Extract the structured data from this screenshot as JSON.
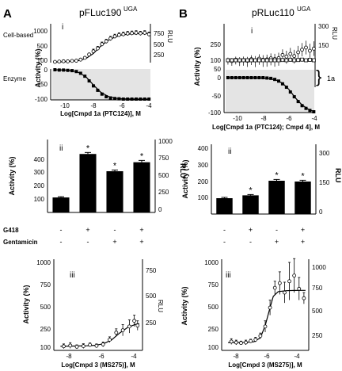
{
  "figure": {
    "panel_a_letter": "A",
    "panel_b_letter": "B",
    "panel_a_title": "pFLuc190",
    "panel_a_superscript": "UGA",
    "panel_b_title": "pRLuc110",
    "panel_b_superscript": "UGA",
    "roman_i": "i",
    "roman_ii": "ii",
    "roman_iii": "iii",
    "cell_based_label": "Cell-based",
    "enzyme_label": "Enzyme",
    "label_1a": "1a",
    "x_label_a_i": "Log[Cmpd 1a (PTC124)], M",
    "x_label_b_i": "Log[Cmpd 1a (PTC124);  Cmpd 4], M",
    "x_label_iii": "Log[Cmpd 3 (MS275)], M",
    "y_label_activity": "Activity (%)",
    "y_label_rlu": "RLU",
    "g418_label": "G418",
    "gentamicin_label": "Gentamicin",
    "g418_signs": [
      "-",
      "+",
      "-",
      "+"
    ],
    "gentamicin_signs": [
      "-",
      "-",
      "+",
      "+"
    ]
  },
  "chart_data": [
    {
      "panel": "A-i-cell",
      "type": "scatter",
      "title": "pFLuc190 UGA",
      "subtitle": "Cell-based",
      "xlim": [
        -11,
        -4
      ],
      "ylim": [
        100,
        1150
      ],
      "y_ticks": [
        100,
        500,
        1000
      ],
      "rlu_ticks": [
        250,
        500,
        750
      ],
      "points": [
        [
          -10.7,
          122
        ],
        [
          -10.4,
          130
        ],
        [
          -10.1,
          138
        ],
        [
          -9.8,
          135
        ],
        [
          -9.5,
          148
        ],
        [
          -9.2,
          155
        ],
        [
          -8.9,
          185
        ],
        [
          -8.6,
          235
        ],
        [
          -8.3,
          330
        ],
        [
          -8.0,
          420
        ],
        [
          -7.7,
          500
        ],
        [
          -7.4,
          620
        ],
        [
          -7.1,
          700
        ],
        [
          -6.8,
          780
        ],
        [
          -6.5,
          840
        ],
        [
          -6.2,
          880
        ],
        [
          -5.9,
          900
        ],
        [
          -5.6,
          920
        ],
        [
          -5.3,
          930
        ],
        [
          -5.0,
          940
        ],
        [
          -4.7,
          925
        ],
        [
          -4.4,
          940
        ],
        [
          -4.1,
          900
        ]
      ],
      "fit": [
        [
          -10.8,
          115
        ],
        [
          -10,
          125
        ],
        [
          -9,
          160
        ],
        [
          -8.5,
          220
        ],
        [
          -8,
          360
        ],
        [
          -7.5,
          560
        ],
        [
          -7,
          720
        ],
        [
          -6.5,
          820
        ],
        [
          -6,
          880
        ],
        [
          -5.5,
          905
        ],
        [
          -5,
          915
        ],
        [
          -4.5,
          920
        ],
        [
          -4.1,
          922
        ]
      ]
    },
    {
      "panel": "A-i-enzyme",
      "type": "scatter",
      "subtitle": "Enzyme",
      "xlim": [
        -11,
        -4
      ],
      "ylim": [
        -100,
        10
      ],
      "y_ticks": [
        0,
        -50,
        -100
      ],
      "x_ticks": [
        -10,
        -8,
        -6,
        -4
      ],
      "points": [
        [
          -10.7,
          0
        ],
        [
          -10.4,
          -1
        ],
        [
          -10.1,
          -1
        ],
        [
          -9.8,
          -2
        ],
        [
          -9.5,
          -3
        ],
        [
          -9.2,
          -6
        ],
        [
          -8.9,
          -12
        ],
        [
          -8.6,
          -22
        ],
        [
          -8.3,
          -38
        ],
        [
          -8.0,
          -55
        ],
        [
          -7.7,
          -70
        ],
        [
          -7.4,
          -83
        ],
        [
          -7.1,
          -92
        ],
        [
          -6.8,
          -96
        ],
        [
          -6.5,
          -98
        ],
        [
          -6.2,
          -99
        ],
        [
          -5.9,
          -100
        ],
        [
          -5.6,
          -100
        ],
        [
          -5.3,
          -100
        ],
        [
          -5.0,
          -100
        ],
        [
          -4.7,
          -100
        ],
        [
          -4.4,
          -100
        ],
        [
          -4.1,
          -100
        ]
      ],
      "fit": [
        [
          -10.8,
          0
        ],
        [
          -10,
          -1
        ],
        [
          -9.5,
          -3
        ],
        [
          -9,
          -10
        ],
        [
          -8.5,
          -25
        ],
        [
          -8,
          -52
        ],
        [
          -7.5,
          -76
        ],
        [
          -7,
          -90
        ],
        [
          -6.5,
          -97
        ],
        [
          -6,
          -99
        ],
        [
          -5,
          -100
        ],
        [
          -4.1,
          -100
        ]
      ]
    },
    {
      "panel": "A-ii",
      "type": "bar",
      "ylim": [
        0,
        460
      ],
      "y_ticks": [
        100,
        200,
        300,
        400
      ],
      "rlu_ticks": [
        0,
        250,
        500,
        750,
        1000
      ],
      "values": [
        100,
        390,
        275,
        335
      ],
      "errors": [
        5,
        10,
        8,
        12
      ],
      "significance": [
        "",
        "*",
        "*",
        "*"
      ]
    },
    {
      "panel": "A-iii",
      "type": "scatter",
      "xlim": [
        -9,
        -3.6
      ],
      "ylim": [
        60,
        1020
      ],
      "y_ticks": [
        100,
        250,
        500,
        750,
        1000
      ],
      "rlu_ticks": [
        250,
        500,
        750
      ],
      "x_ticks": [
        -8,
        -6,
        -4
      ],
      "points": [
        [
          -8.4,
          110
        ],
        [
          -8.0,
          118
        ],
        [
          -7.6,
          105
        ],
        [
          -7.2,
          112
        ],
        [
          -6.8,
          125
        ],
        [
          -6.4,
          115
        ],
        [
          -6.0,
          130
        ],
        [
          -5.6,
          180
        ],
        [
          -5.2,
          255
        ],
        [
          -4.8,
          280
        ],
        [
          -4.4,
          320
        ],
        [
          -4.1,
          380
        ],
        [
          -3.9,
          330
        ]
      ],
      "errors": [
        25,
        30,
        20,
        25,
        20,
        20,
        25,
        30,
        40,
        60,
        70,
        60,
        50
      ],
      "fit": [
        [
          -8.6,
          110
        ],
        [
          -8,
          112
        ],
        [
          -7,
          115
        ],
        [
          -6.5,
          120
        ],
        [
          -6,
          135
        ],
        [
          -5.5,
          175
        ],
        [
          -5,
          250
        ],
        [
          -4.5,
          310
        ],
        [
          -4,
          345
        ],
        [
          -3.8,
          350
        ]
      ]
    },
    {
      "panel": "B-i",
      "type": "scatter",
      "title": "pRLuc110 UGA",
      "xlim": [
        -11,
        -4
      ],
      "ylim": [
        -100,
        330
      ],
      "y_ticks": [
        -100,
        -50,
        0,
        50,
        100,
        250
      ],
      "rlu_ticks": [
        150,
        300
      ],
      "x_ticks": [
        -10,
        -8,
        -6,
        -4
      ],
      "series": [
        {
          "name": "",
          "points": [
            [
              -10.7,
              100
            ],
            [
              -10.4,
              95
            ],
            [
              -10.1,
              105
            ],
            [
              -9.8,
              98
            ],
            [
              -9.5,
              102
            ],
            [
              -9.2,
              97
            ],
            [
              -8.9,
              110
            ],
            [
              -8.6,
              100
            ],
            [
              -8.3,
              115
            ],
            [
              -8.0,
              105
            ],
            [
              -7.7,
              108
            ],
            [
              -7.4,
              118
            ],
            [
              -7.1,
              112
            ],
            [
              -6.8,
              120
            ],
            [
              -6.5,
              150
            ],
            [
              -6.2,
              135
            ],
            [
              -5.9,
              160
            ],
            [
              -5.6,
              140
            ],
            [
              -5.3,
              175
            ],
            [
              -5.0,
              200
            ],
            [
              -4.7,
              220
            ],
            [
              -4.4,
              190
            ],
            [
              -4.1,
              210
            ]
          ]
        },
        {
          "name": "",
          "points": [
            [
              -10.7,
              100
            ],
            [
              -10.4,
              100
            ],
            [
              -10.1,
              100
            ],
            [
              -9.8,
              100
            ],
            [
              -9.5,
              100
            ],
            [
              -9.2,
              100
            ],
            [
              -8.9,
              100
            ],
            [
              -8.6,
              100
            ],
            [
              -8.3,
              100
            ],
            [
              -8.0,
              100
            ],
            [
              -7.7,
              100
            ],
            [
              -7.4,
              100
            ],
            [
              -7.1,
              100
            ],
            [
              -6.8,
              100
            ],
            [
              -6.5,
              102
            ],
            [
              -6.2,
              100
            ],
            [
              -5.9,
              105
            ],
            [
              -5.6,
              100
            ],
            [
              -5.3,
              102
            ],
            [
              -5.0,
              106
            ],
            [
              -4.7,
              100
            ],
            [
              -4.4,
              104
            ],
            [
              -4.1,
              100
            ]
          ]
        },
        {
          "name": "",
          "points": [
            [
              -10.7,
              0
            ],
            [
              -10.4,
              0
            ],
            [
              -10.1,
              0
            ],
            [
              -9.8,
              0
            ],
            [
              -9.5,
              0
            ],
            [
              -9.2,
              0
            ],
            [
              -8.9,
              0
            ],
            [
              -8.6,
              0
            ],
            [
              -8.3,
              0
            ],
            [
              -8.0,
              0
            ],
            [
              -7.7,
              -1
            ],
            [
              -7.4,
              -2
            ],
            [
              -7.1,
              -5
            ],
            [
              -6.8,
              -10
            ],
            [
              -6.5,
              -18
            ],
            [
              -6.2,
              -28
            ],
            [
              -5.9,
              -42
            ],
            [
              -5.6,
              -56
            ],
            [
              -5.3,
              -70
            ],
            [
              -5.0,
              -82
            ],
            [
              -4.7,
              -90
            ],
            [
              -4.4,
              -96
            ],
            [
              -4.1,
              -100
            ]
          ]
        }
      ],
      "fit": [
        [
          -10.8,
          0
        ],
        [
          -9,
          0
        ],
        [
          -8,
          -1
        ],
        [
          -7.5,
          -3
        ],
        [
          -7,
          -7
        ],
        [
          -6.5,
          -16
        ],
        [
          -6,
          -35
        ],
        [
          -5.5,
          -60
        ],
        [
          -5,
          -80
        ],
        [
          -4.5,
          -93
        ],
        [
          -4.1,
          -99
        ]
      ]
    },
    {
      "panel": "B-ii",
      "type": "bar",
      "ylim": [
        0,
        420
      ],
      "y_ticks": [
        100,
        200,
        300,
        400
      ],
      "rlu_ticks": [
        0,
        150,
        300
      ],
      "values": [
        100,
        118,
        210,
        205
      ],
      "errors": [
        5,
        5,
        8,
        8
      ],
      "significance": [
        "",
        "*",
        "*",
        "*"
      ]
    },
    {
      "panel": "B-iii",
      "type": "scatter",
      "xlim": [
        -9,
        -3.6
      ],
      "ylim": [
        60,
        1080
      ],
      "y_ticks": [
        100,
        250,
        500,
        750,
        1000
      ],
      "rlu_ticks": [
        250,
        500,
        750,
        1000
      ],
      "x_ticks": [
        -8,
        -6,
        -4
      ],
      "points": [
        [
          -8.4,
          160
        ],
        [
          -8.1,
          150
        ],
        [
          -7.8,
          145
        ],
        [
          -7.5,
          150
        ],
        [
          -7.2,
          165
        ],
        [
          -6.9,
          180
        ],
        [
          -6.6,
          220
        ],
        [
          -6.3,
          320
        ],
        [
          -6.0,
          520
        ],
        [
          -5.7,
          730
        ],
        [
          -5.4,
          780
        ],
        [
          -5.1,
          680
        ],
        [
          -4.8,
          800
        ],
        [
          -4.5,
          860
        ],
        [
          -4.2,
          720
        ],
        [
          -3.9,
          620
        ]
      ],
      "errors": [
        30,
        25,
        20,
        25,
        20,
        25,
        30,
        60,
        80,
        70,
        120,
        110,
        200,
        180,
        120,
        60
      ],
      "fit": [
        [
          -8.6,
          150
        ],
        [
          -7.5,
          152
        ],
        [
          -7,
          158
        ],
        [
          -6.6,
          200
        ],
        [
          -6.3,
          330
        ],
        [
          -6,
          520
        ],
        [
          -5.8,
          640
        ],
        [
          -5.5,
          690
        ],
        [
          -5,
          700
        ],
        [
          -4.5,
          702
        ],
        [
          -4,
          703
        ],
        [
          -3.8,
          703
        ]
      ]
    }
  ]
}
